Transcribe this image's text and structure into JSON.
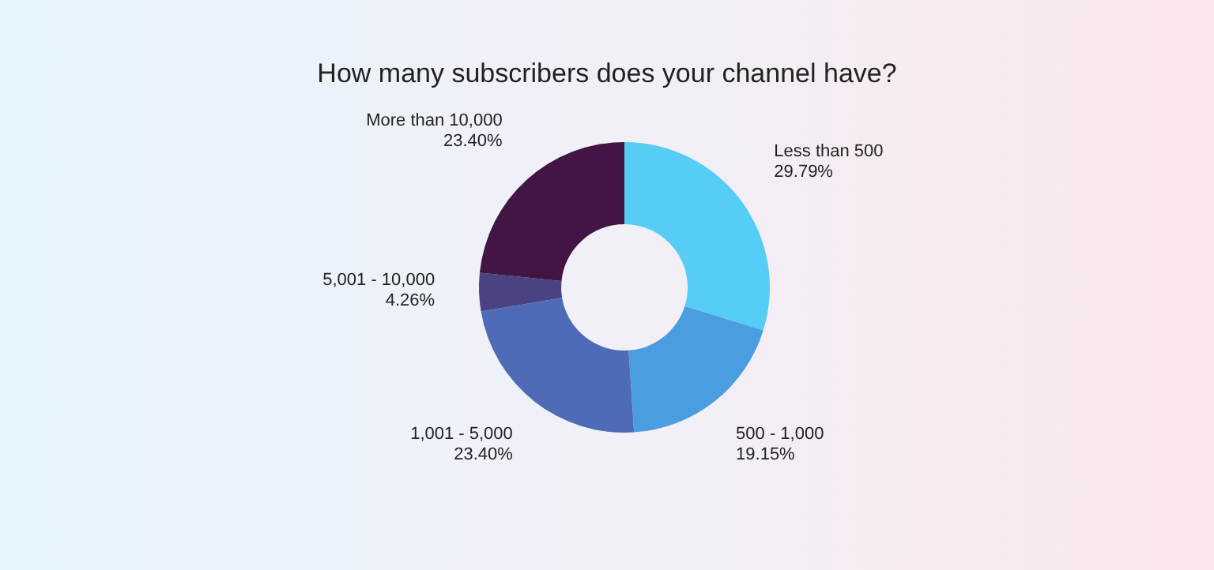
{
  "chart_data": {
    "type": "donut",
    "title": "How many subscribers does your channel have?",
    "categories": [
      "Less than 500",
      "500 - 1,000",
      "1,001 - 5,000",
      "5,001 - 10,000",
      "More than 10,000"
    ],
    "values": [
      29.79,
      19.15,
      23.4,
      4.26,
      23.4
    ],
    "colors": [
      "#56cdf5",
      "#4a9ee0",
      "#4f6bb8",
      "#4a4382",
      "#421545"
    ],
    "value_labels": [
      "29.79%",
      "19.15%",
      "23.40%",
      "4.26%",
      "23.40%"
    ],
    "legend": false
  }
}
